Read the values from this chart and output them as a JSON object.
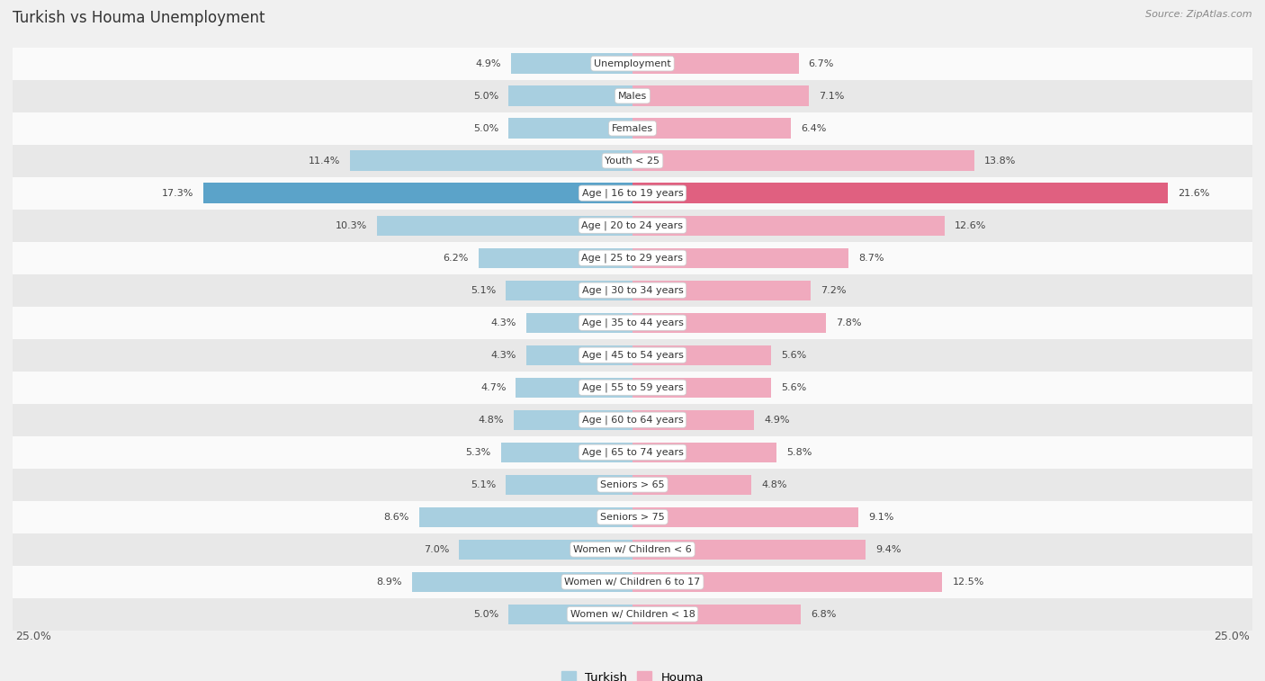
{
  "title": "Turkish vs Houma Unemployment",
  "source": "Source: ZipAtlas.com",
  "categories": [
    "Unemployment",
    "Males",
    "Females",
    "Youth < 25",
    "Age | 16 to 19 years",
    "Age | 20 to 24 years",
    "Age | 25 to 29 years",
    "Age | 30 to 34 years",
    "Age | 35 to 44 years",
    "Age | 45 to 54 years",
    "Age | 55 to 59 years",
    "Age | 60 to 64 years",
    "Age | 65 to 74 years",
    "Seniors > 65",
    "Seniors > 75",
    "Women w/ Children < 6",
    "Women w/ Children 6 to 17",
    "Women w/ Children < 18"
  ],
  "turkish_values": [
    4.9,
    5.0,
    5.0,
    11.4,
    17.3,
    10.3,
    6.2,
    5.1,
    4.3,
    4.3,
    4.7,
    4.8,
    5.3,
    5.1,
    8.6,
    7.0,
    8.9,
    5.0
  ],
  "houma_values": [
    6.7,
    7.1,
    6.4,
    13.8,
    21.6,
    12.6,
    8.7,
    7.2,
    7.8,
    5.6,
    5.6,
    4.9,
    5.8,
    4.8,
    9.1,
    9.4,
    12.5,
    6.8
  ],
  "turkish_color": "#a8cfe0",
  "houma_color": "#f0aabe",
  "turkish_highlight_color": "#5ba3c9",
  "houma_highlight_color": "#e06080",
  "highlight_row": 4,
  "bar_height": 0.62,
  "xlim": 25.0,
  "bg_color": "#f0f0f0",
  "row_bg_white": "#fafafa",
  "row_bg_gray": "#e8e8e8",
  "legend_turkish": "Turkish",
  "legend_houma": "Houma"
}
